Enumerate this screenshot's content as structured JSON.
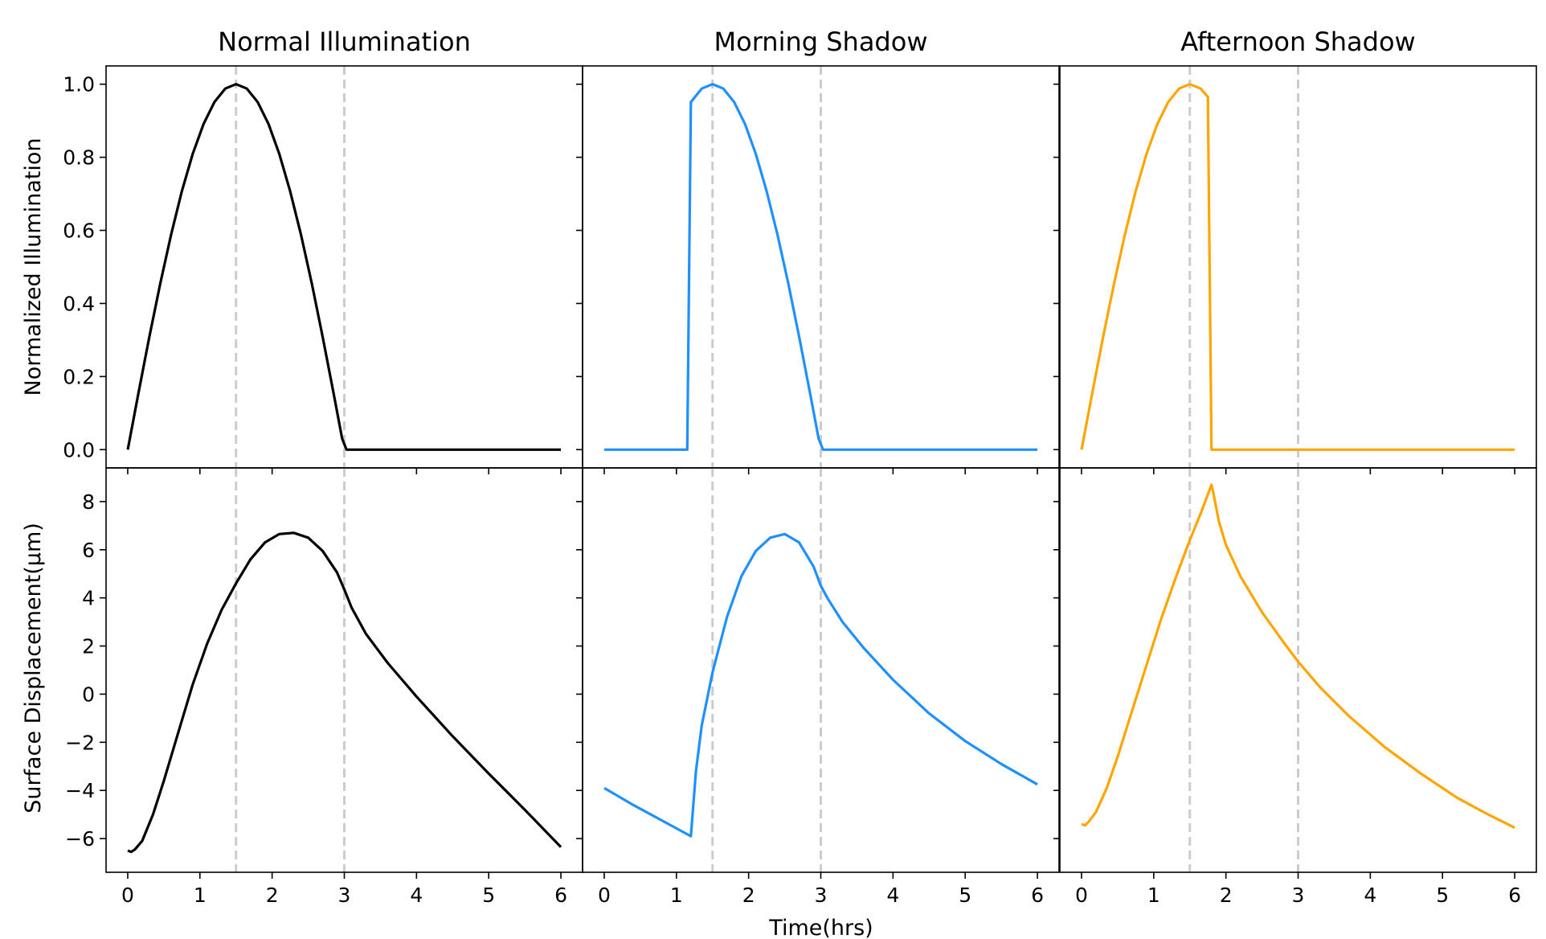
{
  "figure": {
    "xlabel": "Time(hrs)",
    "row_ylabels": [
      "Normalized Illumination",
      "Surface Displacement($\\mu$m)"
    ],
    "row_ylabels_display": [
      "Normalized Illumination",
      "Surface Displacement(μm)"
    ],
    "guide_lines": {
      "x": [
        1.5,
        3.0
      ],
      "color": "#cccccc",
      "style": "dashed"
    }
  },
  "chart_data": [
    {
      "type": "line",
      "title": "Normal Illumination",
      "row": 0,
      "col": 0,
      "xlabel": "",
      "ylabel": "Normalized Illumination",
      "xlim": [
        -0.3,
        6.3
      ],
      "ylim": [
        -0.05,
        1.05
      ],
      "xticks": [
        0,
        1,
        2,
        3,
        4,
        5,
        6
      ],
      "yticks": [
        0.0,
        0.2,
        0.4,
        0.6,
        0.8,
        1.0
      ],
      "series": [
        {
          "color": "#000000",
          "x": [
            0,
            0.15,
            0.3,
            0.45,
            0.6,
            0.75,
            0.9,
            1.05,
            1.2,
            1.35,
            1.5,
            1.65,
            1.8,
            1.95,
            2.1,
            2.25,
            2.4,
            2.55,
            2.7,
            2.85,
            2.97,
            3.03,
            3.2,
            4,
            5,
            6
          ],
          "y": [
            0,
            0.156,
            0.309,
            0.454,
            0.588,
            0.707,
            0.809,
            0.891,
            0.951,
            0.988,
            1.0,
            0.988,
            0.951,
            0.891,
            0.809,
            0.707,
            0.588,
            0.454,
            0.309,
            0.156,
            0.03,
            0.0,
            0,
            0,
            0,
            0
          ]
        }
      ]
    },
    {
      "type": "line",
      "title": "Morning Shadow",
      "row": 0,
      "col": 1,
      "xlabel": "",
      "ylabel": "",
      "xlim": [
        -0.3,
        6.3
      ],
      "ylim": [
        -0.05,
        1.05
      ],
      "xticks": [
        0,
        1,
        2,
        3,
        4,
        5,
        6
      ],
      "yticks": [
        0.0,
        0.2,
        0.4,
        0.6,
        0.8,
        1.0
      ],
      "series": [
        {
          "color": "#1e90ff",
          "x": [
            0,
            0.6,
            1.15,
            1.2,
            1.35,
            1.5,
            1.65,
            1.8,
            1.95,
            2.1,
            2.25,
            2.4,
            2.55,
            2.7,
            2.85,
            2.97,
            3.03,
            3.5,
            4,
            5,
            6
          ],
          "y": [
            0,
            0,
            0,
            0.951,
            0.988,
            1.0,
            0.988,
            0.951,
            0.891,
            0.809,
            0.707,
            0.588,
            0.454,
            0.309,
            0.156,
            0.03,
            0.0,
            0,
            0,
            0,
            0
          ]
        }
      ]
    },
    {
      "type": "line",
      "title": "Afternoon Shadow",
      "row": 0,
      "col": 2,
      "xlabel": "",
      "ylabel": "",
      "xlim": [
        -0.3,
        6.3
      ],
      "ylim": [
        -0.05,
        1.05
      ],
      "xticks": [
        0,
        1,
        2,
        3,
        4,
        5,
        6
      ],
      "yticks": [
        0.0,
        0.2,
        0.4,
        0.6,
        0.8,
        1.0
      ],
      "series": [
        {
          "color": "#ffa500",
          "x": [
            0,
            0.15,
            0.3,
            0.45,
            0.6,
            0.75,
            0.9,
            1.05,
            1.2,
            1.35,
            1.5,
            1.65,
            1.75,
            1.8,
            2.5,
            3,
            4,
            5,
            6
          ],
          "y": [
            0,
            0.156,
            0.309,
            0.454,
            0.588,
            0.707,
            0.809,
            0.891,
            0.951,
            0.988,
            1.0,
            0.988,
            0.965,
            0.0,
            0,
            0,
            0,
            0,
            0
          ]
        }
      ]
    },
    {
      "type": "line",
      "title": "",
      "row": 1,
      "col": 0,
      "xlabel": "",
      "ylabel": "Surface Displacement($\\mu$m)",
      "xlim": [
        -0.3,
        6.3
      ],
      "ylim": [
        -7.4,
        9.4
      ],
      "xticks": [
        0,
        1,
        2,
        3,
        4,
        5,
        6
      ],
      "yticks": [
        -6,
        -4,
        -2,
        0,
        2,
        4,
        6,
        8
      ],
      "series": [
        {
          "color": "#000000",
          "x": [
            0,
            0.05,
            0.1,
            0.2,
            0.35,
            0.5,
            0.7,
            0.9,
            1.1,
            1.3,
            1.5,
            1.7,
            1.9,
            2.1,
            2.3,
            2.5,
            2.7,
            2.9,
            3.0,
            3.1,
            3.3,
            3.6,
            4.0,
            4.5,
            5.0,
            5.5,
            6.0
          ],
          "y": [
            -6.5,
            -6.55,
            -6.45,
            -6.1,
            -5.0,
            -3.6,
            -1.6,
            0.4,
            2.1,
            3.5,
            4.6,
            5.6,
            6.3,
            6.65,
            6.7,
            6.5,
            5.95,
            5.05,
            4.35,
            3.6,
            2.5,
            1.3,
            -0.1,
            -1.75,
            -3.3,
            -4.8,
            -6.35
          ]
        }
      ]
    },
    {
      "type": "line",
      "title": "",
      "row": 1,
      "col": 1,
      "xlabel": "Time(hrs)",
      "ylabel": "",
      "xlim": [
        -0.3,
        6.3
      ],
      "ylim": [
        -7.4,
        9.4
      ],
      "xticks": [
        0,
        1,
        2,
        3,
        4,
        5,
        6
      ],
      "yticks": [
        -6,
        -4,
        -2,
        0,
        2,
        4,
        6,
        8
      ],
      "series": [
        {
          "color": "#1e90ff",
          "x": [
            0,
            0.4,
            0.8,
            1.2,
            1.27,
            1.35,
            1.5,
            1.7,
            1.9,
            2.1,
            2.3,
            2.5,
            2.7,
            2.9,
            3.0,
            3.1,
            3.3,
            3.6,
            4.0,
            4.5,
            5.0,
            5.5,
            6.0
          ],
          "y": [
            -3.9,
            -4.6,
            -5.25,
            -5.9,
            -3.2,
            -1.3,
            0.9,
            3.2,
            4.9,
            5.95,
            6.5,
            6.65,
            6.3,
            5.3,
            4.5,
            3.95,
            3.0,
            1.9,
            0.6,
            -0.8,
            -1.95,
            -2.9,
            -3.75
          ]
        }
      ]
    },
    {
      "type": "line",
      "title": "",
      "row": 1,
      "col": 2,
      "xlabel": "",
      "ylabel": "",
      "xlim": [
        -0.3,
        6.3
      ],
      "ylim": [
        -7.4,
        9.4
      ],
      "xticks": [
        0,
        1,
        2,
        3,
        4,
        5,
        6
      ],
      "yticks": [
        -6,
        -4,
        -2,
        0,
        2,
        4,
        6,
        8
      ],
      "series": [
        {
          "color": "#ffa500",
          "x": [
            0,
            0.05,
            0.1,
            0.2,
            0.35,
            0.5,
            0.7,
            0.9,
            1.1,
            1.3,
            1.5,
            1.65,
            1.8,
            1.83,
            1.9,
            2.0,
            2.2,
            2.5,
            2.8,
            3.0,
            3.3,
            3.7,
            4.2,
            4.7,
            5.2,
            5.6,
            6.0
          ],
          "y": [
            -5.4,
            -5.45,
            -5.3,
            -4.9,
            -3.9,
            -2.6,
            -0.7,
            1.2,
            3.1,
            4.8,
            6.4,
            7.5,
            8.7,
            8.3,
            7.2,
            6.2,
            4.9,
            3.4,
            2.15,
            1.35,
            0.3,
            -0.9,
            -2.2,
            -3.3,
            -4.3,
            -4.95,
            -5.55
          ]
        }
      ]
    }
  ]
}
